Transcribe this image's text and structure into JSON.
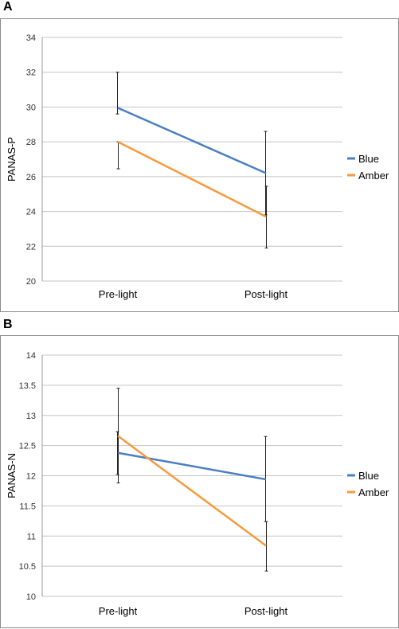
{
  "chart_data": [
    {
      "panel_label": "A",
      "type": "line",
      "ylabel": "PANAS-P",
      "ylim": [
        20,
        34
      ],
      "yticks": [
        20,
        22,
        24,
        26,
        28,
        30,
        32,
        34
      ],
      "categories": [
        "Pre-light",
        "Post-light"
      ],
      "grid": true,
      "legend_position": "right",
      "series": [
        {
          "name": "Blue",
          "color": "#4a7fc1",
          "values": [
            29.95,
            26.2
          ],
          "err_low": [
            29.6,
            23.8
          ],
          "err_high": [
            32.0,
            28.6
          ]
        },
        {
          "name": "Amber",
          "color": "#f79a3e",
          "values": [
            28.0,
            23.7
          ],
          "err_low": [
            26.45,
            21.9
          ],
          "err_high": [
            28.0,
            25.45
          ]
        }
      ]
    },
    {
      "panel_label": "B",
      "type": "line",
      "ylabel": "PANAS-N",
      "ylim": [
        10,
        14
      ],
      "yticks": [
        10,
        10.5,
        11,
        11.5,
        12,
        12.5,
        13,
        13.5,
        14
      ],
      "categories": [
        "Pre-light",
        "Post-light"
      ],
      "grid": true,
      "legend_position": "right",
      "series": [
        {
          "name": "Blue",
          "color": "#4a7fc1",
          "values": [
            12.38,
            11.94
          ],
          "err_low": [
            12.02,
            11.24
          ],
          "err_high": [
            12.73,
            12.65
          ]
        },
        {
          "name": "Amber",
          "color": "#f79a3e",
          "values": [
            12.66,
            10.84
          ],
          "err_low": [
            11.88,
            10.42
          ],
          "err_high": [
            13.45,
            11.24
          ]
        }
      ]
    }
  ]
}
